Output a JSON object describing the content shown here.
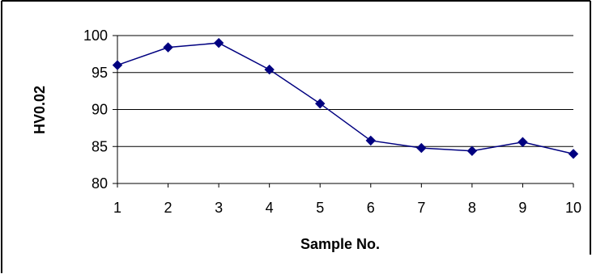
{
  "chart_data": {
    "type": "line",
    "title": "",
    "xlabel": "Sample No.",
    "ylabel": "HV0.02",
    "x": [
      1,
      2,
      3,
      4,
      5,
      6,
      7,
      8,
      9,
      10
    ],
    "series": [
      {
        "values": [
          96.0,
          98.4,
          99.0,
          95.4,
          90.8,
          85.8,
          84.8,
          84.4,
          85.6,
          84.0
        ],
        "color": "#000080",
        "marker": "diamond"
      }
    ],
    "ylim": [
      80,
      100
    ],
    "yticks": [
      80,
      85,
      90,
      95,
      100
    ],
    "xticks": [
      1,
      2,
      3,
      4,
      5,
      6,
      7,
      8,
      9,
      10
    ],
    "grid": "horizontal",
    "legend": "none",
    "colors": {
      "line": "#000080",
      "marker": "#000080",
      "grid": "#000000",
      "frame": "#000000",
      "background": "#ffffff"
    }
  }
}
